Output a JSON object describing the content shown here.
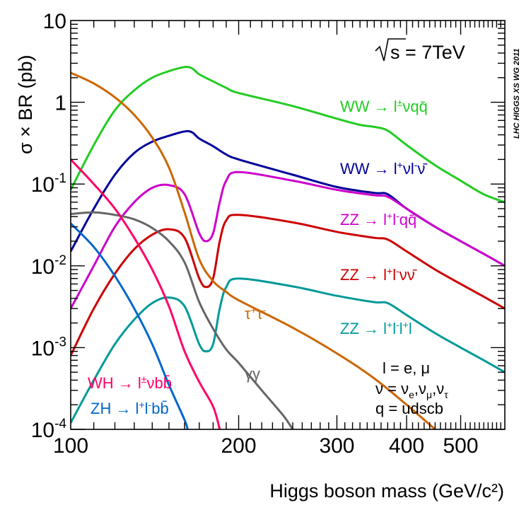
{
  "chart_data": {
    "type": "line",
    "x_scale": "log",
    "y_scale": "log",
    "xlim": [
      100,
      600
    ],
    "ylim": [
      0.0001,
      10
    ],
    "xlabel": "Higgs boson mass (GeV/c²)",
    "ylabel": "σ × BR (pb)",
    "x_ticks": [
      {
        "value": 100,
        "label": "100"
      },
      {
        "value": 200,
        "label": "200"
      },
      {
        "value": 300,
        "label": "300"
      },
      {
        "value": 400,
        "label": "400"
      },
      {
        "value": 500,
        "label": "500"
      }
    ],
    "y_ticks": [
      {
        "value": 10,
        "base": "10",
        "exp": ""
      },
      {
        "value": 1,
        "base": "1",
        "exp": ""
      },
      {
        "value": 0.1,
        "base": "10",
        "exp": "-1"
      },
      {
        "value": 0.01,
        "base": "10",
        "exp": "-2"
      },
      {
        "value": 0.001,
        "base": "10",
        "exp": "-3"
      },
      {
        "value": 0.0001,
        "base": "10",
        "exp": "-4"
      }
    ],
    "energy_label": "s = 7TeV",
    "watermark": "LHC HIGGS XS WG 2011",
    "legend_lines": [
      "l = e, μ",
      "ν = νe,νμ,ντ",
      "q = udscb"
    ],
    "series": [
      {
        "name": "WW → l±νqq̄",
        "color": "#22cc22",
        "points": [
          [
            100,
            0.085
          ],
          [
            110,
            0.3
          ],
          [
            120,
            0.8
          ],
          [
            130,
            1.4
          ],
          [
            140,
            2.0
          ],
          [
            150,
            2.4
          ],
          [
            160,
            2.7
          ],
          [
            165,
            2.6
          ],
          [
            170,
            2.2
          ],
          [
            180,
            1.8
          ],
          [
            190,
            1.5
          ],
          [
            200,
            1.3
          ],
          [
            250,
            0.9
          ],
          [
            300,
            0.63
          ],
          [
            330,
            0.53
          ],
          [
            350,
            0.5
          ],
          [
            370,
            0.45
          ],
          [
            400,
            0.3
          ],
          [
            450,
            0.17
          ],
          [
            500,
            0.11
          ],
          [
            550,
            0.075
          ],
          [
            600,
            0.06
          ]
        ]
      },
      {
        "name": "WW → l+νl-ν̄",
        "color": "#000099",
        "points": [
          [
            100,
            0.015
          ],
          [
            110,
            0.05
          ],
          [
            120,
            0.13
          ],
          [
            130,
            0.24
          ],
          [
            140,
            0.33
          ],
          [
            150,
            0.39
          ],
          [
            160,
            0.44
          ],
          [
            165,
            0.43
          ],
          [
            170,
            0.36
          ],
          [
            180,
            0.29
          ],
          [
            190,
            0.23
          ],
          [
            200,
            0.2
          ],
          [
            250,
            0.13
          ],
          [
            300,
            0.092
          ],
          [
            350,
            0.078
          ],
          [
            370,
            0.075
          ],
          [
            400,
            0.05
          ],
          [
            450,
            0.03
          ],
          [
            500,
            0.02
          ],
          [
            550,
            0.014
          ],
          [
            600,
            0.01
          ]
        ]
      },
      {
        "name": "ZZ → l+l-qq̄",
        "color": "#cc00cc",
        "points": [
          [
            100,
            0.003
          ],
          [
            110,
            0.01
          ],
          [
            120,
            0.03
          ],
          [
            130,
            0.06
          ],
          [
            140,
            0.09
          ],
          [
            150,
            0.097
          ],
          [
            160,
            0.075
          ],
          [
            170,
            0.025
          ],
          [
            175,
            0.02
          ],
          [
            180,
            0.025
          ],
          [
            185,
            0.06
          ],
          [
            190,
            0.11
          ],
          [
            200,
            0.14
          ],
          [
            250,
            0.11
          ],
          [
            300,
            0.085
          ],
          [
            350,
            0.073
          ],
          [
            370,
            0.07
          ],
          [
            400,
            0.05
          ],
          [
            450,
            0.03
          ],
          [
            500,
            0.02
          ],
          [
            550,
            0.014
          ],
          [
            600,
            0.01
          ]
        ]
      },
      {
        "name": "ZZ → l+l-νν̄",
        "color": "#cc0000",
        "points": [
          [
            100,
            0.0008
          ],
          [
            110,
            0.003
          ],
          [
            120,
            0.008
          ],
          [
            130,
            0.016
          ],
          [
            140,
            0.024
          ],
          [
            150,
            0.028
          ],
          [
            160,
            0.022
          ],
          [
            170,
            0.007
          ],
          [
            175,
            0.0055
          ],
          [
            180,
            0.007
          ],
          [
            185,
            0.02
          ],
          [
            190,
            0.036
          ],
          [
            200,
            0.042
          ],
          [
            250,
            0.034
          ],
          [
            300,
            0.026
          ],
          [
            350,
            0.022
          ],
          [
            370,
            0.021
          ],
          [
            400,
            0.015
          ],
          [
            450,
            0.009
          ],
          [
            500,
            0.006
          ],
          [
            550,
            0.0042
          ],
          [
            600,
            0.003
          ]
        ]
      },
      {
        "name": "ZZ → l+l-l+l-",
        "color": "#009999",
        "points": [
          [
            100,
            0.00012
          ],
          [
            110,
            0.0004
          ],
          [
            120,
            0.0011
          ],
          [
            130,
            0.0022
          ],
          [
            140,
            0.0035
          ],
          [
            150,
            0.0041
          ],
          [
            160,
            0.0032
          ],
          [
            170,
            0.0011
          ],
          [
            175,
            0.0009
          ],
          [
            180,
            0.0011
          ],
          [
            185,
            0.003
          ],
          [
            190,
            0.0055
          ],
          [
            200,
            0.007
          ],
          [
            250,
            0.0056
          ],
          [
            300,
            0.0043
          ],
          [
            350,
            0.0036
          ],
          [
            370,
            0.0035
          ],
          [
            400,
            0.0025
          ],
          [
            450,
            0.0015
          ],
          [
            500,
            0.001
          ],
          [
            550,
            0.0007
          ],
          [
            600,
            0.0005
          ]
        ]
      },
      {
        "name": "τ+τ-",
        "color": "#cc6600",
        "points": [
          [
            100,
            2.3
          ],
          [
            110,
            1.7
          ],
          [
            120,
            1.15
          ],
          [
            130,
            0.7
          ],
          [
            140,
            0.37
          ],
          [
            150,
            0.16
          ],
          [
            160,
            0.045
          ],
          [
            170,
            0.012
          ],
          [
            180,
            0.0065
          ],
          [
            190,
            0.0048
          ],
          [
            200,
            0.0038
          ],
          [
            250,
            0.00175
          ],
          [
            300,
            0.00085
          ],
          [
            350,
            0.00042
          ],
          [
            400,
            0.0002
          ],
          [
            450,
            0.0001
          ]
        ]
      },
      {
        "name": "γγ",
        "color": "#666666",
        "points": [
          [
            100,
            0.043
          ],
          [
            110,
            0.045
          ],
          [
            120,
            0.042
          ],
          [
            130,
            0.037
          ],
          [
            140,
            0.029
          ],
          [
            150,
            0.02
          ],
          [
            160,
            0.011
          ],
          [
            170,
            0.0036
          ],
          [
            180,
            0.0017
          ],
          [
            190,
            0.00095
          ],
          [
            200,
            0.00065
          ],
          [
            220,
            0.0003
          ],
          [
            240,
            0.00015
          ],
          [
            250,
            0.0001
          ]
        ]
      },
      {
        "name": "WH → l±νbb̄",
        "color": "#ff0066",
        "points": [
          [
            100,
            0.2
          ],
          [
            110,
            0.1
          ],
          [
            120,
            0.05
          ],
          [
            130,
            0.022
          ],
          [
            140,
            0.009
          ],
          [
            150,
            0.0032
          ],
          [
            160,
            0.0009
          ],
          [
            170,
            0.00038
          ],
          [
            180,
            0.00019
          ],
          [
            185,
            0.0001
          ]
        ]
      },
      {
        "name": "ZH → l+l-bb̄",
        "color": "#0066cc",
        "points": [
          [
            100,
            0.033
          ],
          [
            110,
            0.017
          ],
          [
            120,
            0.0075
          ],
          [
            130,
            0.003
          ],
          [
            140,
            0.0011
          ],
          [
            150,
            0.00035
          ],
          [
            160,
            0.00013
          ],
          [
            162,
            0.0001
          ]
        ]
      }
    ]
  }
}
